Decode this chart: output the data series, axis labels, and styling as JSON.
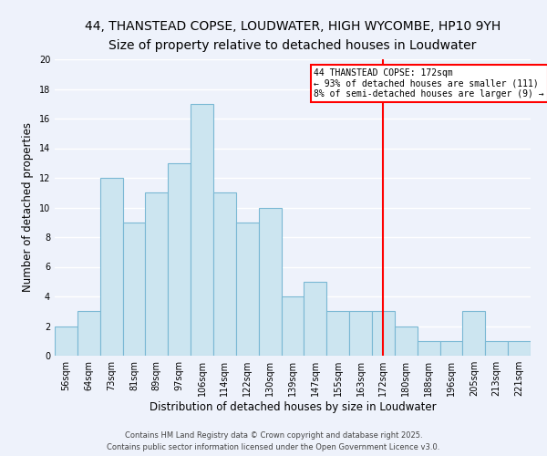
{
  "title": "44, THANSTEAD COPSE, LOUDWATER, HIGH WYCOMBE, HP10 9YH",
  "subtitle": "Size of property relative to detached houses in Loudwater",
  "xlabel": "Distribution of detached houses by size in Loudwater",
  "ylabel": "Number of detached properties",
  "bin_labels": [
    "56sqm",
    "64sqm",
    "73sqm",
    "81sqm",
    "89sqm",
    "97sqm",
    "106sqm",
    "114sqm",
    "122sqm",
    "130sqm",
    "139sqm",
    "147sqm",
    "155sqm",
    "163sqm",
    "172sqm",
    "180sqm",
    "188sqm",
    "196sqm",
    "205sqm",
    "213sqm",
    "221sqm"
  ],
  "bar_heights": [
    2,
    3,
    12,
    9,
    11,
    13,
    17,
    11,
    9,
    10,
    4,
    5,
    3,
    3,
    3,
    2,
    1,
    1,
    3,
    1,
    1
  ],
  "bar_color": "#cce5f0",
  "bar_edge_color": "#7ab8d4",
  "vline_x_index": 14,
  "vline_color": "red",
  "ylim": [
    0,
    20
  ],
  "yticks": [
    0,
    2,
    4,
    6,
    8,
    10,
    12,
    14,
    16,
    18,
    20
  ],
  "annotation_title": "44 THANSTEAD COPSE: 172sqm",
  "annotation_line1": "← 93% of detached houses are smaller (111)",
  "annotation_line2": "8% of semi-detached houses are larger (9) →",
  "annotation_box_color": "#ffffff",
  "annotation_box_edge": "red",
  "footer_line1": "Contains HM Land Registry data © Crown copyright and database right 2025.",
  "footer_line2": "Contains public sector information licensed under the Open Government Licence v3.0.",
  "background_color": "#eef2fb",
  "grid_color": "#ffffff",
  "title_fontsize": 10,
  "subtitle_fontsize": 9,
  "axis_label_fontsize": 8.5,
  "tick_fontsize": 7,
  "annotation_fontsize": 7,
  "footer_fontsize": 6
}
